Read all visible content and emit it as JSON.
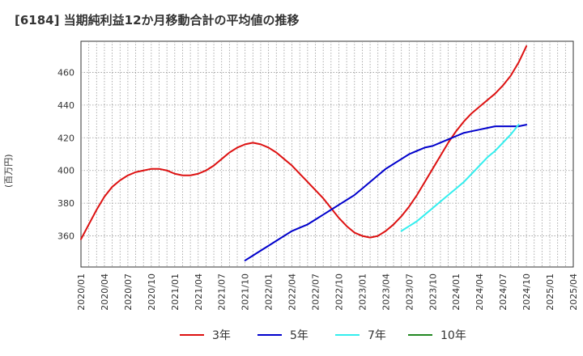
{
  "title": "[6184]  当期純利益12か月移動合計の平均値の推移",
  "colors": {
    "3y": "#dd1111",
    "5y": "#0000cc",
    "7y": "#33eeee",
    "10y": "#228822"
  },
  "chart_data": {
    "type": "line",
    "title": "[6184]  当期純利益12か月移動合計の平均値の推移",
    "xlabel": "",
    "ylabel": "(百万円)",
    "xlim": [
      "2020-01",
      "2025-04"
    ],
    "ylim": [
      341,
      479
    ],
    "yticks": [
      360,
      380,
      400,
      420,
      440,
      460
    ],
    "xticks": [
      "2020/01",
      "2020/04",
      "2020/07",
      "2020/10",
      "2021/01",
      "2021/04",
      "2021/07",
      "2021/10",
      "2022/01",
      "2022/04",
      "2022/07",
      "2022/10",
      "2023/01",
      "2023/04",
      "2023/07",
      "2023/10",
      "2024/01",
      "2024/04",
      "2024/07",
      "2024/10",
      "2025/01",
      "2025/04"
    ],
    "grid": true,
    "legend_position": "bottom",
    "series": [
      {
        "name": "3年",
        "color": "#dd1111",
        "points": [
          [
            "2020-01",
            358
          ],
          [
            "2020-02",
            367
          ],
          [
            "2020-03",
            376
          ],
          [
            "2020-04",
            384
          ],
          [
            "2020-05",
            390
          ],
          [
            "2020-06",
            394
          ],
          [
            "2020-07",
            397
          ],
          [
            "2020-08",
            399
          ],
          [
            "2020-09",
            400
          ],
          [
            "2020-10",
            401
          ],
          [
            "2020-11",
            401
          ],
          [
            "2020-12",
            400
          ],
          [
            "2021-01",
            398
          ],
          [
            "2021-02",
            397
          ],
          [
            "2021-03",
            397
          ],
          [
            "2021-04",
            398
          ],
          [
            "2021-05",
            400
          ],
          [
            "2021-06",
            403
          ],
          [
            "2021-07",
            407
          ],
          [
            "2021-08",
            411
          ],
          [
            "2021-09",
            414
          ],
          [
            "2021-10",
            416
          ],
          [
            "2021-11",
            417
          ],
          [
            "2021-12",
            416
          ],
          [
            "2022-01",
            414
          ],
          [
            "2022-02",
            411
          ],
          [
            "2022-03",
            407
          ],
          [
            "2022-04",
            403
          ],
          [
            "2022-05",
            398
          ],
          [
            "2022-06",
            393
          ],
          [
            "2022-07",
            388
          ],
          [
            "2022-08",
            383
          ],
          [
            "2022-09",
            377
          ],
          [
            "2022-10",
            371
          ],
          [
            "2022-11",
            366
          ],
          [
            "2022-12",
            362
          ],
          [
            "2023-01",
            360
          ],
          [
            "2023-02",
            359
          ],
          [
            "2023-03",
            360
          ],
          [
            "2023-04",
            363
          ],
          [
            "2023-05",
            367
          ],
          [
            "2023-06",
            372
          ],
          [
            "2023-07",
            378
          ],
          [
            "2023-08",
            385
          ],
          [
            "2023-09",
            393
          ],
          [
            "2023-10",
            401
          ],
          [
            "2023-11",
            409
          ],
          [
            "2023-12",
            417
          ],
          [
            "2024-01",
            424
          ],
          [
            "2024-02",
            430
          ],
          [
            "2024-03",
            435
          ],
          [
            "2024-04",
            439
          ],
          [
            "2024-05",
            443
          ],
          [
            "2024-06",
            447
          ],
          [
            "2024-07",
            452
          ],
          [
            "2024-08",
            458
          ],
          [
            "2024-09",
            466
          ],
          [
            "2024-10",
            476
          ]
        ]
      },
      {
        "name": "5年",
        "color": "#0000cc",
        "points": [
          [
            "2021-10",
            345
          ],
          [
            "2021-11",
            348
          ],
          [
            "2021-12",
            351
          ],
          [
            "2022-01",
            354
          ],
          [
            "2022-02",
            357
          ],
          [
            "2022-03",
            360
          ],
          [
            "2022-04",
            363
          ],
          [
            "2022-05",
            365
          ],
          [
            "2022-06",
            367
          ],
          [
            "2022-07",
            370
          ],
          [
            "2022-08",
            373
          ],
          [
            "2022-09",
            376
          ],
          [
            "2022-10",
            379
          ],
          [
            "2022-11",
            382
          ],
          [
            "2022-12",
            385
          ],
          [
            "2023-01",
            389
          ],
          [
            "2023-02",
            393
          ],
          [
            "2023-03",
            397
          ],
          [
            "2023-04",
            401
          ],
          [
            "2023-05",
            404
          ],
          [
            "2023-06",
            407
          ],
          [
            "2023-07",
            410
          ],
          [
            "2023-08",
            412
          ],
          [
            "2023-09",
            414
          ],
          [
            "2023-10",
            415
          ],
          [
            "2023-11",
            417
          ],
          [
            "2023-12",
            419
          ],
          [
            "2024-01",
            421
          ],
          [
            "2024-02",
            423
          ],
          [
            "2024-03",
            424
          ],
          [
            "2024-04",
            425
          ],
          [
            "2024-05",
            426
          ],
          [
            "2024-06",
            427
          ],
          [
            "2024-07",
            427
          ],
          [
            "2024-08",
            427
          ],
          [
            "2024-09",
            427
          ],
          [
            "2024-10",
            428
          ]
        ]
      },
      {
        "name": "7年",
        "color": "#33eeee",
        "points": [
          [
            "2023-06",
            363
          ],
          [
            "2023-07",
            366
          ],
          [
            "2023-08",
            369
          ],
          [
            "2023-09",
            373
          ],
          [
            "2023-10",
            377
          ],
          [
            "2023-11",
            381
          ],
          [
            "2023-12",
            385
          ],
          [
            "2024-01",
            389
          ],
          [
            "2024-02",
            393
          ],
          [
            "2024-03",
            398
          ],
          [
            "2024-04",
            403
          ],
          [
            "2024-05",
            408
          ],
          [
            "2024-06",
            412
          ],
          [
            "2024-07",
            417
          ],
          [
            "2024-08",
            422
          ],
          [
            "2024-09",
            428
          ]
        ]
      },
      {
        "name": "10年",
        "color": "#228822",
        "points": []
      }
    ]
  }
}
